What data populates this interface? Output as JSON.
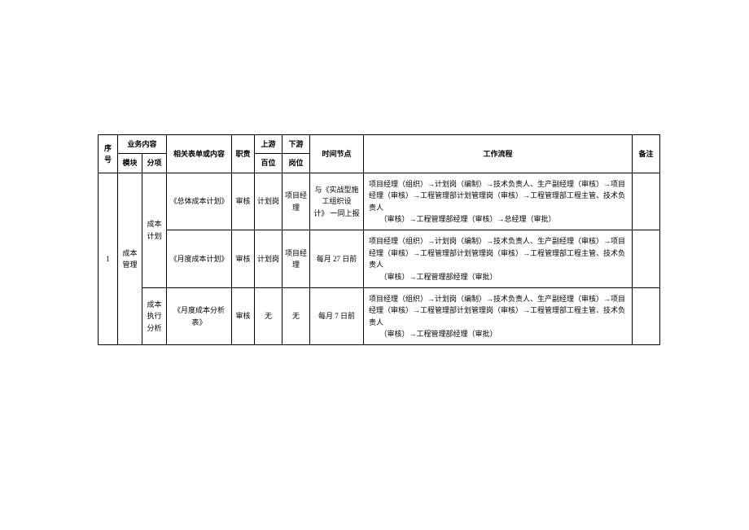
{
  "header": {
    "seq": "序号",
    "biz": "业务内容",
    "module": "模块",
    "subitem": "分项",
    "form": "相关表单或内容",
    "duty": "职责",
    "upstream_l1": "上游",
    "upstream_l2": "百位",
    "downstream_l1": "下游",
    "downstream_l2": "岗位",
    "time": "时间节点",
    "workflow": "工作流程",
    "remark": "备注"
  },
  "rows": [
    {
      "seq": "1",
      "module": "成本管理",
      "subitem": "成本计划",
      "form": "《总体成本计划》",
      "duty": "审核",
      "upstream": "计划岗",
      "downstream": "项目经理",
      "time": "与《实战型施工组织设计》 一同上报",
      "workflow": "项目经理（组织）→计划岗（编制）→技术负责人、生产副经理（审核）→项目经理（审核）→工程管理部计划管理岗（审核）→工程管理部工程主管、技术负责人\n（审核）→工程管理部经理（审核）→总经理（审批）",
      "remark": ""
    },
    {
      "seq": "",
      "module": "",
      "subitem": "",
      "form": "《月度成本计划》",
      "duty": "审核",
      "upstream": "计划岗",
      "downstream": "项目经理",
      "time": "每月 27 日前",
      "workflow": "项目经理（组织）→计划岗（编制）→技术负责人、生产副经理（审核）→项目经理（审核）→工程管理部计划管理岗（审核）→工程管理部工程主管、技术负责人\n（审核）→工程管理部经理（审批）",
      "remark": ""
    },
    {
      "seq": "",
      "module": "",
      "subitem": "成本执行分析",
      "form": "《月度成本分析表》",
      "duty": "审核",
      "upstream": "无",
      "downstream": "无",
      "time": "每月 7 日前",
      "workflow": "项目经理（组织）→计划岗（编制）→技术负责人、生产副经理（审核）→项目经理（审核）→工程管理部计划管理岗（审核）→工程管理部工程主管、技术负责人\n（审核）→工程管理部经理（审批）",
      "remark": ""
    }
  ],
  "style": {
    "border_color": "#000000",
    "background": "#ffffff",
    "font_size_pt": 9
  }
}
